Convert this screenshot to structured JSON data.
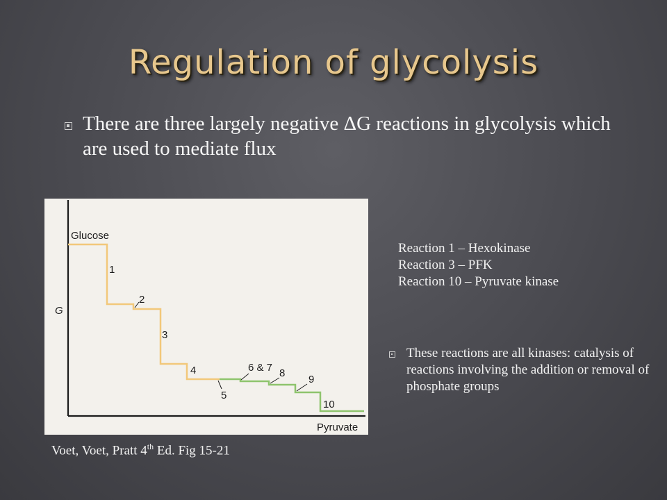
{
  "title": "Regulation of glycolysis",
  "bullet1": "There are three largely negative ΔG reactions in glycolysis which are used to mediate flux",
  "reactions": [
    "Reaction 1 – Hexokinase",
    "Reaction 3 – PFK",
    "Reaction 10 – Pyruvate kinase"
  ],
  "bullet2": "These reactions are all kinases: catalysis of reactions involving the addition or removal of phosphate groups",
  "caption": {
    "text": "Voet, Voet, Pratt 4",
    "sup": "th",
    "suffix": " Ed. Fig 15-21"
  },
  "figure": {
    "y_axis_label": "G",
    "start_label": "Glucose",
    "end_label": "Pyruvate",
    "step_labels": [
      "1",
      "2",
      "3",
      "4",
      "5",
      "6 & 7",
      "8",
      "9",
      "10"
    ],
    "colors": {
      "early": "#f2c87a",
      "late": "#8ec46d",
      "axis": "#1a1a1a"
    }
  }
}
